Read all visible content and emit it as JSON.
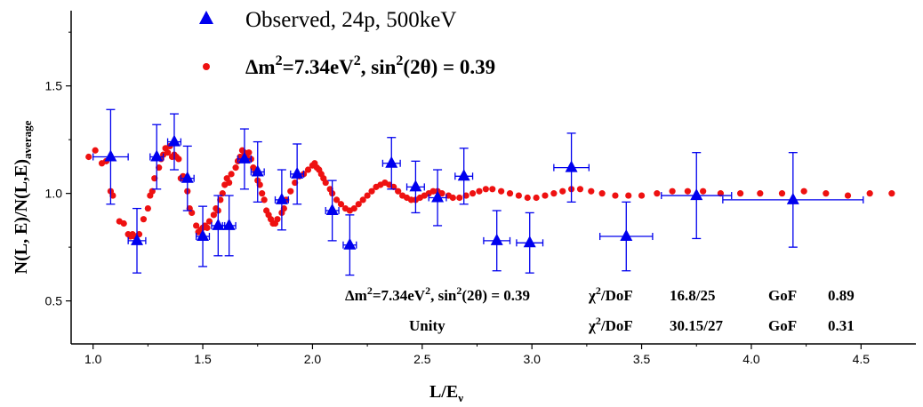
{
  "chart_data": {
    "type": "scatter",
    "xlabel_main": "L/E",
    "xlabel_sub": "ν",
    "ylabel_main": "N(L, E)/N(L,E)",
    "ylabel_sub": "average",
    "xlim": [
      0.9,
      4.75
    ],
    "ylim": [
      0.3,
      1.85
    ],
    "xticks": [
      1.0,
      1.5,
      2.0,
      2.5,
      3.0,
      3.5,
      4.0,
      4.5
    ],
    "xtick_labels": [
      "1.0",
      "1.5",
      "2.0",
      "2.5",
      "3.0",
      "3.5",
      "4.0",
      "4.5"
    ],
    "yticks": [
      0.5,
      1.0,
      1.5
    ],
    "ytick_labels": [
      "0.5",
      "1.0",
      "1.5"
    ],
    "grid": false,
    "legend": {
      "placement": "top",
      "observed": "Observed, 24p, 500keV",
      "fit_pre": "Δm",
      "fit_mid": "=7.34eV",
      "fit_post": ", sin",
      "fit_end": "(2θ) = 0.39",
      "sup": "2"
    },
    "stats": {
      "row1_label_pre": "Δm",
      "row1_label_mid": "=7.34eV",
      "row1_label_post": ", sin",
      "row1_label_end": "(2θ) = 0.39",
      "sup": "2",
      "chi_pre": "χ",
      "chi_post": "/DoF",
      "row1_chi_value": "16.8/25",
      "gof_label": "GoF",
      "row1_gof": "0.89",
      "row2_label": "Unity",
      "row2_chi_value": "30.15/27",
      "row2_gof": "0.31"
    },
    "series": [
      {
        "name": "Observed, 24p, 500keV",
        "marker": "triangle",
        "color": "#0000ee",
        "points": [
          {
            "x": 1.08,
            "y": 1.17,
            "xerr": 0.08,
            "yerr": 0.22
          },
          {
            "x": 1.2,
            "y": 0.78,
            "xerr": 0.04,
            "yerr": 0.15
          },
          {
            "x": 1.29,
            "y": 1.17,
            "xerr": 0.03,
            "yerr": 0.15
          },
          {
            "x": 1.37,
            "y": 1.24,
            "xerr": 0.03,
            "yerr": 0.13
          },
          {
            "x": 1.43,
            "y": 1.07,
            "xerr": 0.03,
            "yerr": 0.15
          },
          {
            "x": 1.5,
            "y": 0.8,
            "xerr": 0.03,
            "yerr": 0.14
          },
          {
            "x": 1.57,
            "y": 0.85,
            "xerr": 0.03,
            "yerr": 0.14
          },
          {
            "x": 1.62,
            "y": 0.85,
            "xerr": 0.03,
            "yerr": 0.14
          },
          {
            "x": 1.69,
            "y": 1.16,
            "xerr": 0.03,
            "yerr": 0.14
          },
          {
            "x": 1.75,
            "y": 1.1,
            "xerr": 0.03,
            "yerr": 0.14
          },
          {
            "x": 1.86,
            "y": 0.97,
            "xerr": 0.03,
            "yerr": 0.14
          },
          {
            "x": 1.93,
            "y": 1.09,
            "xerr": 0.03,
            "yerr": 0.14
          },
          {
            "x": 2.09,
            "y": 0.92,
            "xerr": 0.03,
            "yerr": 0.14
          },
          {
            "x": 2.17,
            "y": 0.76,
            "xerr": 0.03,
            "yerr": 0.14
          },
          {
            "x": 2.36,
            "y": 1.14,
            "xerr": 0.04,
            "yerr": 0.12
          },
          {
            "x": 2.47,
            "y": 1.03,
            "xerr": 0.04,
            "yerr": 0.12
          },
          {
            "x": 2.57,
            "y": 0.98,
            "xerr": 0.04,
            "yerr": 0.13
          },
          {
            "x": 2.69,
            "y": 1.08,
            "xerr": 0.04,
            "yerr": 0.13
          },
          {
            "x": 2.84,
            "y": 0.78,
            "xerr": 0.06,
            "yerr": 0.14
          },
          {
            "x": 2.99,
            "y": 0.77,
            "xerr": 0.06,
            "yerr": 0.14
          },
          {
            "x": 3.18,
            "y": 1.12,
            "xerr": 0.08,
            "yerr": 0.16
          },
          {
            "x": 3.43,
            "y": 0.8,
            "xerr": 0.12,
            "yerr": 0.16
          },
          {
            "x": 3.75,
            "y": 0.99,
            "xerr": 0.16,
            "yerr": 0.2
          },
          {
            "x": 4.19,
            "y": 0.97,
            "xerr": 0.32,
            "yerr": 0.22
          }
        ]
      },
      {
        "name": "fit",
        "marker": "circle",
        "color": "#ee1111",
        "points": [
          [
            0.98,
            1.17
          ],
          [
            1.01,
            1.2
          ],
          [
            1.04,
            1.14
          ],
          [
            1.06,
            1.15
          ],
          [
            1.08,
            1.01
          ],
          [
            1.09,
            0.99
          ],
          [
            1.12,
            0.87
          ],
          [
            1.14,
            0.86
          ],
          [
            1.16,
            0.81
          ],
          [
            1.17,
            0.8
          ],
          [
            1.18,
            0.81
          ],
          [
            1.19,
            0.8
          ],
          [
            1.2,
            0.78
          ],
          [
            1.21,
            0.81
          ],
          [
            1.23,
            0.88
          ],
          [
            1.25,
            0.93
          ],
          [
            1.26,
            0.99
          ],
          [
            1.27,
            1.01
          ],
          [
            1.28,
            1.07
          ],
          [
            1.3,
            1.12
          ],
          [
            1.31,
            1.16
          ],
          [
            1.32,
            1.18
          ],
          [
            1.33,
            1.21
          ],
          [
            1.34,
            1.19
          ],
          [
            1.35,
            1.22
          ],
          [
            1.36,
            1.17
          ],
          [
            1.37,
            1.18
          ],
          [
            1.38,
            1.17
          ],
          [
            1.39,
            1.16
          ],
          [
            1.4,
            1.07
          ],
          [
            1.41,
            1.08
          ],
          [
            1.43,
            1.01
          ],
          [
            1.44,
            0.93
          ],
          [
            1.45,
            0.91
          ],
          [
            1.47,
            0.85
          ],
          [
            1.48,
            0.82
          ],
          [
            1.49,
            0.83
          ],
          [
            1.5,
            0.84
          ],
          [
            1.51,
            0.85
          ],
          [
            1.52,
            0.84
          ],
          [
            1.53,
            0.87
          ],
          [
            1.55,
            0.9
          ],
          [
            1.56,
            0.93
          ],
          [
            1.57,
            0.92
          ],
          [
            1.58,
            0.97
          ],
          [
            1.59,
            1.0
          ],
          [
            1.6,
            1.04
          ],
          [
            1.61,
            1.07
          ],
          [
            1.62,
            1.05
          ],
          [
            1.63,
            1.09
          ],
          [
            1.65,
            1.12
          ],
          [
            1.66,
            1.15
          ],
          [
            1.67,
            1.17
          ],
          [
            1.68,
            1.2
          ],
          [
            1.69,
            1.19
          ],
          [
            1.7,
            1.17
          ],
          [
            1.71,
            1.19
          ],
          [
            1.72,
            1.16
          ],
          [
            1.73,
            1.12
          ],
          [
            1.74,
            1.1
          ],
          [
            1.75,
            1.06
          ],
          [
            1.76,
            1.04
          ],
          [
            1.77,
            1.0
          ],
          [
            1.78,
            0.97
          ],
          [
            1.79,
            0.92
          ],
          [
            1.8,
            0.9
          ],
          [
            1.81,
            0.88
          ],
          [
            1.82,
            0.86
          ],
          [
            1.83,
            0.86
          ],
          [
            1.84,
            0.88
          ],
          [
            1.86,
            0.91
          ],
          [
            1.87,
            0.93
          ],
          [
            1.88,
            0.97
          ],
          [
            1.9,
            1.01
          ],
          [
            1.92,
            1.05
          ],
          [
            1.94,
            1.08
          ],
          [
            1.96,
            1.09
          ],
          [
            1.98,
            1.11
          ],
          [
            2.0,
            1.13
          ],
          [
            2.01,
            1.14
          ],
          [
            2.02,
            1.12
          ],
          [
            2.03,
            1.11
          ],
          [
            2.04,
            1.09
          ],
          [
            2.05,
            1.07
          ],
          [
            2.06,
            1.05
          ],
          [
            2.08,
            1.02
          ],
          [
            2.09,
            1.0
          ],
          [
            2.11,
            0.97
          ],
          [
            2.13,
            0.95
          ],
          [
            2.15,
            0.93
          ],
          [
            2.17,
            0.92
          ],
          [
            2.19,
            0.93
          ],
          [
            2.21,
            0.95
          ],
          [
            2.23,
            0.97
          ],
          [
            2.25,
            0.99
          ],
          [
            2.27,
            1.01
          ],
          [
            2.29,
            1.03
          ],
          [
            2.31,
            1.04
          ],
          [
            2.33,
            1.05
          ],
          [
            2.35,
            1.04
          ],
          [
            2.37,
            1.03
          ],
          [
            2.39,
            1.01
          ],
          [
            2.41,
            0.99
          ],
          [
            2.43,
            0.98
          ],
          [
            2.45,
            0.97
          ],
          [
            2.47,
            0.97
          ],
          [
            2.49,
            0.98
          ],
          [
            2.51,
            0.99
          ],
          [
            2.53,
            1.0
          ],
          [
            2.55,
            1.01
          ],
          [
            2.57,
            1.01
          ],
          [
            2.59,
            1.0
          ],
          [
            2.62,
            0.99
          ],
          [
            2.64,
            0.98
          ],
          [
            2.67,
            0.98
          ],
          [
            2.7,
            0.99
          ],
          [
            2.73,
            1.0
          ],
          [
            2.76,
            1.01
          ],
          [
            2.79,
            1.02
          ],
          [
            2.82,
            1.02
          ],
          [
            2.86,
            1.01
          ],
          [
            2.9,
            1.0
          ],
          [
            2.94,
            0.99
          ],
          [
            2.98,
            0.98
          ],
          [
            3.02,
            0.98
          ],
          [
            3.06,
            0.99
          ],
          [
            3.1,
            1.0
          ],
          [
            3.14,
            1.01
          ],
          [
            3.18,
            1.02
          ],
          [
            3.22,
            1.02
          ],
          [
            3.27,
            1.01
          ],
          [
            3.32,
            1.0
          ],
          [
            3.38,
            0.99
          ],
          [
            3.44,
            0.99
          ],
          [
            3.5,
            0.99
          ],
          [
            3.57,
            1.0
          ],
          [
            3.64,
            1.01
          ],
          [
            3.71,
            1.01
          ],
          [
            3.78,
            1.01
          ],
          [
            3.86,
            1.0
          ],
          [
            3.95,
            1.0
          ],
          [
            4.04,
            1.0
          ],
          [
            4.14,
            1.0
          ],
          [
            4.24,
            1.01
          ],
          [
            4.34,
            1.0
          ],
          [
            4.44,
            0.99
          ],
          [
            4.54,
            1.0
          ],
          [
            4.64,
            1.0
          ]
        ]
      }
    ]
  }
}
